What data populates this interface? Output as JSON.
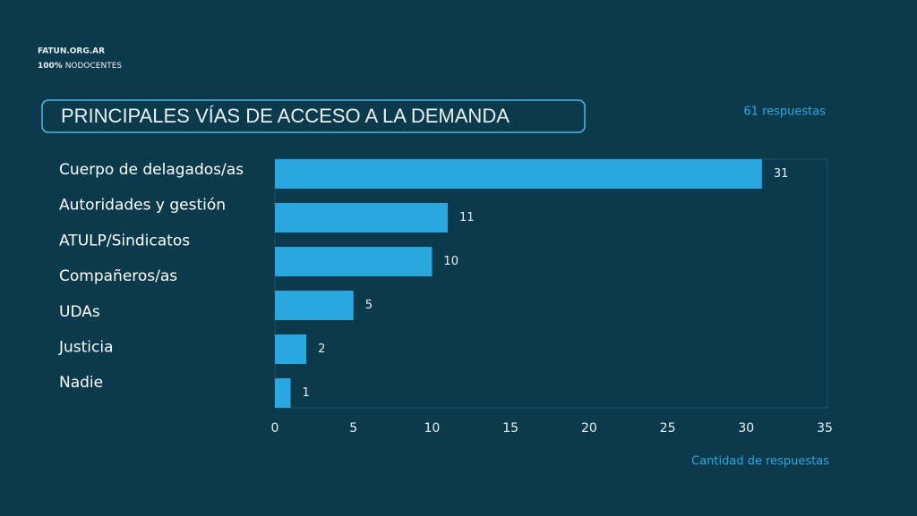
{
  "header": {
    "site": "FATUN.ORG.AR",
    "tag_bold": "100%",
    "tag_rest": "NODOCENTES"
  },
  "chart_data": {
    "type": "barh",
    "title": "PRINCIPALES VÍAS DE ACCESO A LA DEMANDA",
    "subtitle": "61 respuestas",
    "x_label": "Cantidad de respuestas",
    "categories": [
      "Cuerpo de delagados/as",
      "Autoridades y gestión",
      "ATULP/Sindicatos",
      "Compañeros/as",
      "UDAs",
      "Justicia",
      "Nadie"
    ],
    "values": [
      31,
      11,
      10,
      5,
      2,
      1,
      null
    ],
    "color": "#29a8e0",
    "xlim": [
      0,
      35
    ],
    "xticks": [
      0,
      5,
      10,
      15,
      20,
      25,
      30,
      35
    ]
  }
}
